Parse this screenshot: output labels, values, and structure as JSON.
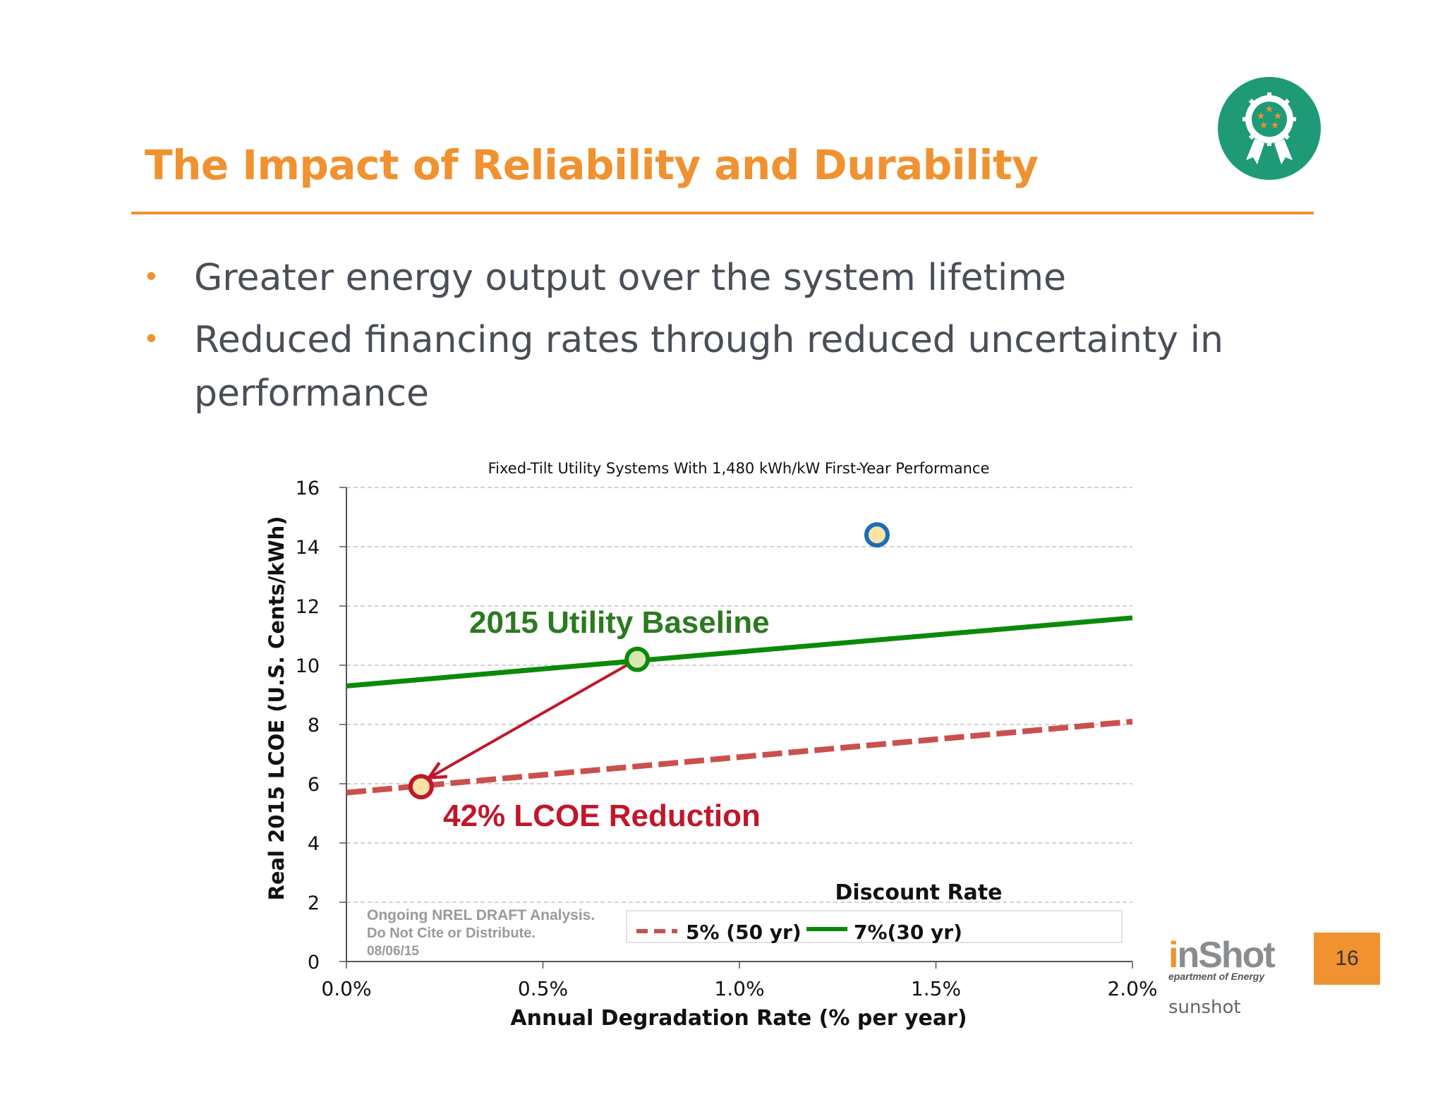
{
  "slide": {
    "title": "The Impact of Reliability and Durability",
    "bullets": [
      "Greater energy output over the system lifetime",
      "Reduced financing rates through reduced uncertainty in performance"
    ],
    "bullet_glyph": "•",
    "badge_icon": "award-ribbon-stars-icon",
    "footer": {
      "logo_text": "nShot",
      "logo_accent": "i",
      "logo_subtext": "epartment of Energy",
      "url_text": "sunshot",
      "page_number": "16"
    },
    "colors": {
      "accent": "#ef922f",
      "badge_green": "#1e9a76",
      "series_7pct": "#0a8a0a",
      "series_5pct": "#c9504c",
      "reduction_red": "#c0172a",
      "baseline_green": "#2a7a1f"
    }
  },
  "chart_data": {
    "type": "line",
    "title": "Fixed-Tilt Utility Systems With 1,480 kWh/kW First-Year Performance",
    "xlabel": "Annual Degradation Rate (% per year)",
    "ylabel": "Real 2015 LCOE (U.S. Cents/kWh)",
    "xlim": [
      0,
      2.0
    ],
    "ylim": [
      0,
      16
    ],
    "x_ticks": [
      0,
      0.5,
      1.0,
      1.5,
      2.0
    ],
    "x_tick_labels": [
      "0.0%",
      "0.5%",
      "1.0%",
      "1.5%",
      "2.0%"
    ],
    "y_ticks": [
      0,
      2,
      4,
      6,
      8,
      10,
      12,
      14,
      16
    ],
    "y_tick_labels": [
      "0",
      "2",
      "4",
      "6",
      "8",
      "10",
      "12",
      "14",
      "16"
    ],
    "grid": "horizontal dashed",
    "legend_title": "Discount Rate",
    "legend_position": "bottom-right",
    "series": [
      {
        "name": "5% (50 yr)",
        "style": "dashed",
        "color": "#c9504c",
        "x": [
          0,
          2.0
        ],
        "y": [
          5.7,
          8.1
        ]
      },
      {
        "name": "7%(30 yr)",
        "style": "solid",
        "color": "#0a8a0a",
        "x": [
          0,
          2.0
        ],
        "y": [
          9.3,
          11.6
        ]
      }
    ],
    "points": [
      {
        "x": 1.35,
        "y": 14.4,
        "fill": "#fbe3a6",
        "stroke": "#1a6fb5"
      },
      {
        "x": 0.74,
        "y": 10.2,
        "fill": "#d6e8b0",
        "stroke": "#0a8a0a"
      },
      {
        "x": 0.19,
        "y": 5.9,
        "fill": "#fbe3a6",
        "stroke": "#c0172a"
      }
    ],
    "annotations": {
      "baseline_label": "2015 Utility Baseline",
      "reduction_label": "42% LCOE Reduction",
      "draft_note": [
        "Ongoing NREL DRAFT Analysis.",
        "Do Not Cite or Distribute.",
        "08/06/15"
      ]
    },
    "arrow": {
      "from": [
        0.74,
        10.2
      ],
      "to": [
        0.21,
        6.2
      ]
    }
  }
}
